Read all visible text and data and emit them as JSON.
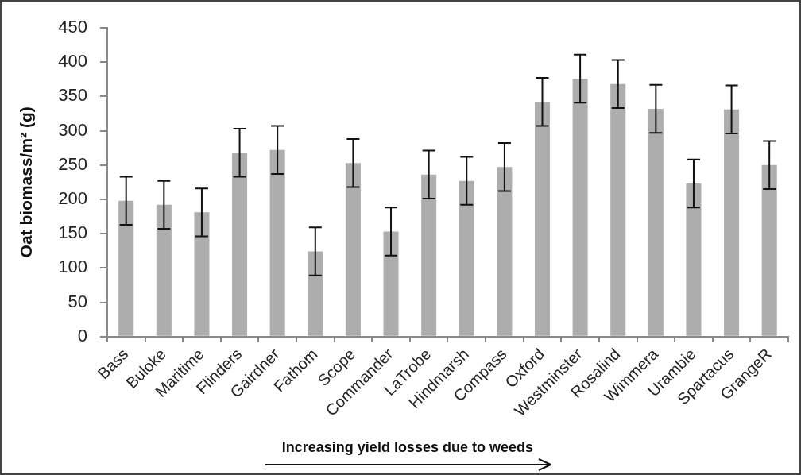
{
  "chart_data": {
    "type": "bar",
    "ylabel": "Oat biomass/m² (g)",
    "categories": [
      "Bass",
      "Buloke",
      "Maritime",
      "Flinders",
      "Gairdner",
      "Fathom",
      "Scope",
      "Commander",
      "LaTrobe",
      "Hindmarsh",
      "Compass",
      "Oxford",
      "Westminster",
      "Rosalind",
      "Wimmera",
      "Urambie",
      "Spartacus",
      "GrangeR"
    ],
    "values": [
      198,
      192,
      181,
      268,
      272,
      124,
      253,
      153,
      236,
      227,
      247,
      342,
      376,
      368,
      332,
      223,
      331,
      250
    ],
    "errors": [
      35,
      35,
      35,
      35,
      35,
      35,
      35,
      35,
      35,
      35,
      35,
      35,
      35,
      35,
      35,
      35,
      35,
      35
    ],
    "color": "#adadad",
    "ylim": [
      0,
      450
    ],
    "yticks": [
      0,
      50,
      100,
      150,
      200,
      250,
      300,
      350,
      400,
      450
    ],
    "annotations": [
      "Increasing yield losses due to weeds"
    ]
  }
}
